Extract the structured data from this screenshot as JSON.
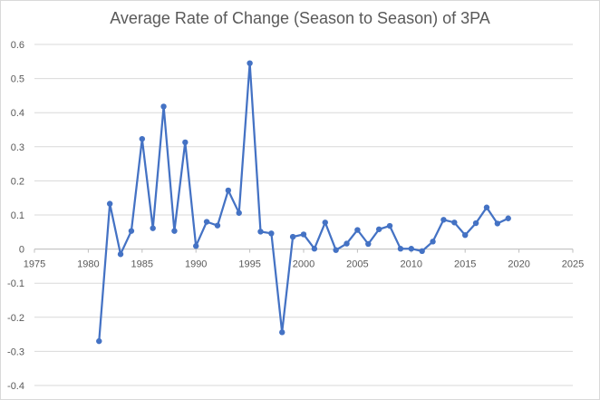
{
  "chart_data": {
    "type": "line",
    "title": "Average Rate of Change (Season to Season) of 3PA",
    "xlabel": "",
    "ylabel": "",
    "xlim": [
      1975,
      2025
    ],
    "ylim": [
      -0.4,
      0.6
    ],
    "xticks": [
      1975,
      1980,
      1985,
      1990,
      1995,
      2000,
      2005,
      2010,
      2015,
      2020,
      2025
    ],
    "yticks": [
      -0.4,
      -0.3,
      -0.2,
      -0.1,
      0,
      0.1,
      0.2,
      0.3,
      0.4,
      0.5,
      0.6
    ],
    "xtick_labels": [
      "1975",
      "1980",
      "1985",
      "1990",
      "1995",
      "2000",
      "2005",
      "2010",
      "2015",
      "2020",
      "2025"
    ],
    "ytick_labels": [
      "-0.4",
      "-0.3",
      "-0.2",
      "-0.1",
      "0",
      "0.1",
      "0.2",
      "0.3",
      "0.4",
      "0.5",
      "0.6"
    ],
    "grid": true,
    "legend": "none",
    "colors": {
      "series": "#4472c4",
      "grid": "#d9d9d9",
      "text": "#595959"
    },
    "series": [
      {
        "x": [
          1981,
          1982,
          1983,
          1984,
          1985,
          1986,
          1987,
          1988,
          1989,
          1990,
          1991,
          1992,
          1993,
          1994,
          1995,
          1996,
          1997,
          1998,
          1999,
          2000,
          2001,
          2002,
          2003,
          2004,
          2005,
          2006,
          2007,
          2008,
          2009,
          2010,
          2011,
          2012,
          2013,
          2014,
          2015,
          2016,
          2017,
          2018,
          2019
        ],
        "values": [
          -0.27,
          0.133,
          -0.015,
          0.053,
          0.323,
          0.061,
          0.418,
          0.053,
          0.313,
          0.009,
          0.08,
          0.069,
          0.172,
          0.106,
          0.545,
          0.051,
          0.046,
          -0.244,
          0.036,
          0.043,
          0.001,
          0.078,
          -0.003,
          0.016,
          0.056,
          0.015,
          0.058,
          0.068,
          0.001,
          0.001,
          -0.006,
          0.022,
          0.086,
          0.078,
          0.041,
          0.076,
          0.122,
          0.075,
          0.09
        ]
      }
    ]
  }
}
